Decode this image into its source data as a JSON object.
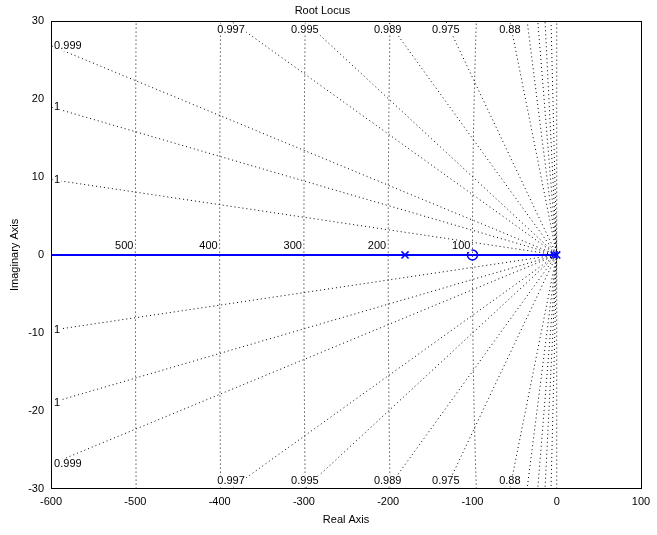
{
  "chart_data": {
    "type": "rootlocus",
    "title": "Root Locus",
    "xlabel": "Real Axis",
    "ylabel": "Imaginary Axis",
    "xlim": [
      -600,
      100
    ],
    "xticks": [
      -600,
      -500,
      -400,
      -300,
      -200,
      -100,
      0,
      100
    ],
    "ylim": [
      -30,
      30
    ],
    "yticks": [
      -30,
      -20,
      -10,
      0,
      10,
      20,
      30
    ],
    "grid": false,
    "series": [
      {
        "type": "line",
        "color": "#0000ff",
        "line_style": "solid",
        "x": [
          -600,
          -180,
          -100,
          0
        ],
        "values": [
          0,
          0,
          0,
          0
        ]
      },
      {
        "type": "scatter",
        "color": "#0000ff",
        "marker": "x",
        "x": [
          -180,
          -3,
          0
        ],
        "values": [
          0,
          0,
          0
        ]
      },
      {
        "type": "scatter",
        "color": "#0000ff",
        "marker": "o",
        "x": [
          -100
        ],
        "values": [
          0
        ]
      }
    ],
    "damping_ratios": [
      {
        "value": 0.99987,
        "label": "1"
      },
      {
        "value": 0.9995,
        "label": "1"
      },
      0.999,
      0.997,
      0.995,
      0.989,
      0.975,
      0.88,
      {
        "value": 0.76,
        "label": null
      },
      {
        "value": 0.6,
        "label": null
      },
      {
        "value": 0.42,
        "label": null
      },
      {
        "value": 0.22,
        "label": null
      },
      {
        "value": 0,
        "label": null
      }
    ],
    "natural_frequencies": [
      100,
      200,
      300,
      400,
      500
    ]
  }
}
